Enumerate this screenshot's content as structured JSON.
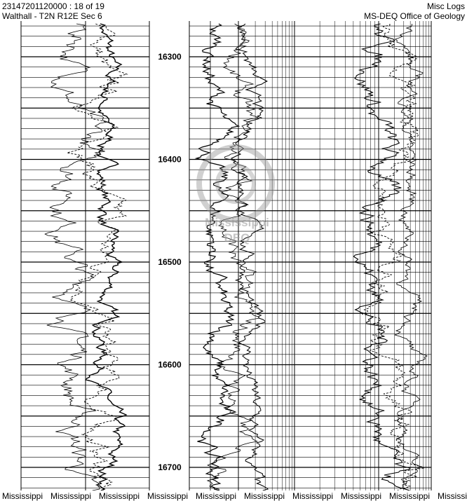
{
  "header": {
    "left": [
      "23147201120000 : 18 of 19",
      "Walthall - T2N R12E Sec 6"
    ],
    "right": [
      "Misc Logs",
      "MS-DEQ Office of Geology"
    ]
  },
  "depth_labels": [
    "16300",
    "16400",
    "16500",
    "16600",
    "16700"
  ],
  "watermark": [
    "Mississippi",
    "DEQ"
  ],
  "footer": [
    "Mississippi",
    "Mississippi",
    "Mississippi",
    "Mississippi",
    "Mississippi",
    "Mississippi",
    "Mississippi",
    "Mississippi",
    "Mississippi",
    "Mississippi"
  ]
}
